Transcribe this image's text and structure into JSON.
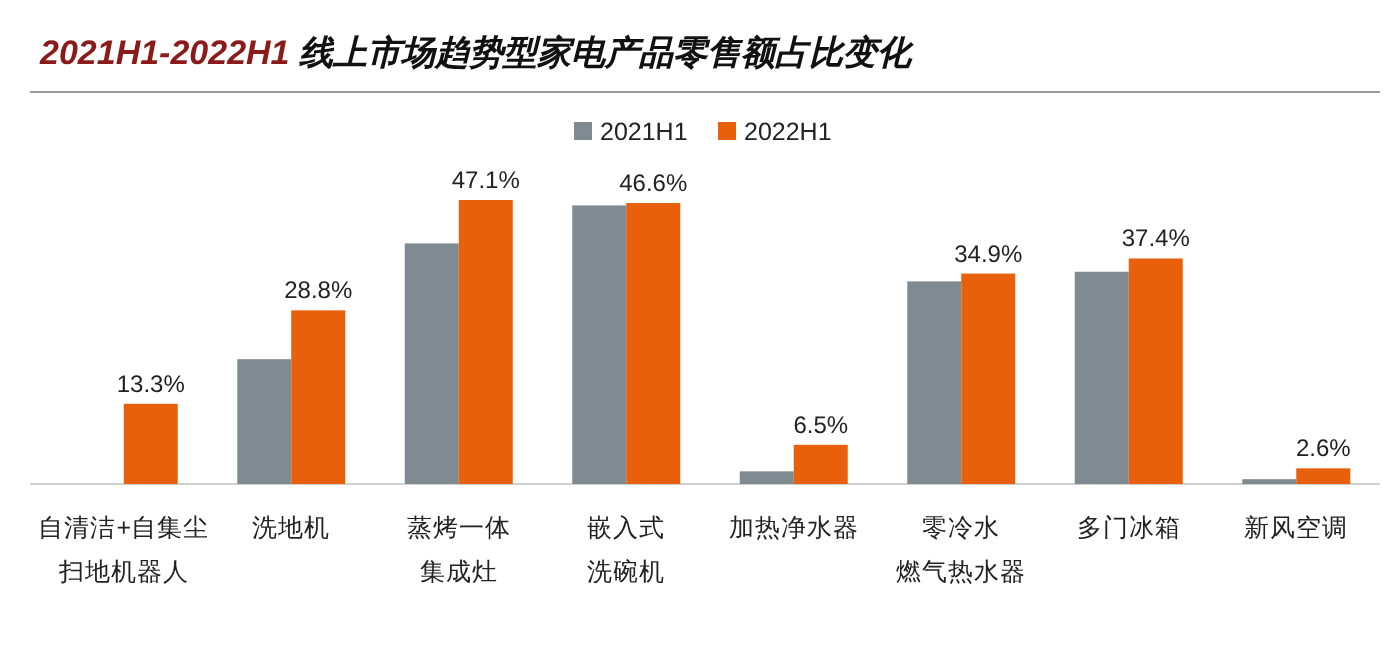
{
  "chart_data": {
    "type": "bar",
    "title": "2021H1-2022H1 线上市场趋势型家电产品零售额占比变化",
    "categories": [
      "自清洁+自集尘扫地机器人",
      "洗地机",
      "蒸烤一体集成灶",
      "嵌入式洗碗机",
      "加热净水器",
      "零冷水燃气热水器",
      "多门冰箱",
      "新风空调"
    ],
    "series": [
      {
        "name": "2021H1",
        "color": "#7f8a91",
        "values": [
          null,
          20.7,
          39.9,
          46.2,
          2.1,
          33.6,
          35.2,
          0.8
        ]
      },
      {
        "name": "2022H1",
        "color": "#e8600c",
        "values": [
          13.3,
          28.8,
          47.1,
          46.6,
          6.5,
          34.9,
          37.4,
          2.6
        ],
        "value_labels": [
          "13.3%",
          "28.8%",
          "47.1%",
          "46.6%",
          "6.5%",
          "34.9%",
          "37.4%",
          "2.6%"
        ]
      }
    ],
    "legend": "top",
    "grid": false
  }
}
